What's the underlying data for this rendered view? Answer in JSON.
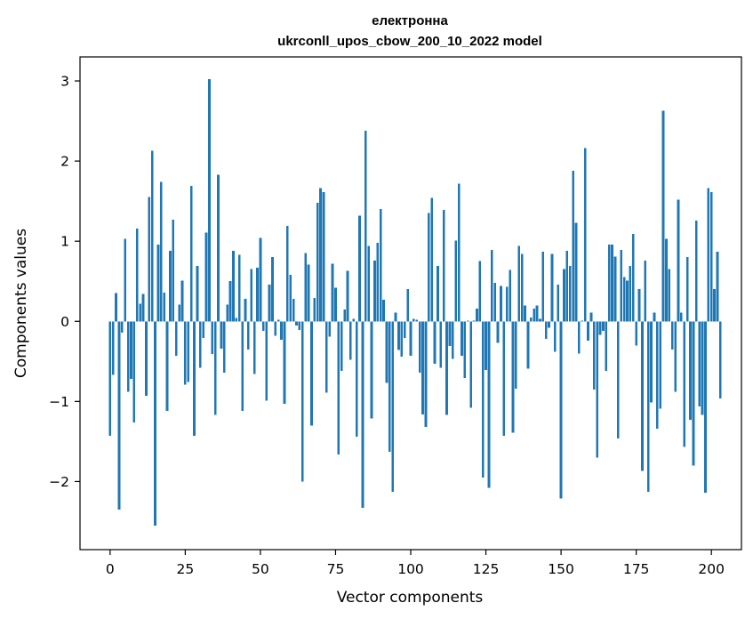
{
  "chart_data": {
    "type": "bar",
    "title_line1": "електронна",
    "title_line2": "ukrconll_upos_cbow_200_10_2022 model",
    "xlabel": "Vector components",
    "ylabel": "Components values",
    "xlim": [
      -10,
      210
    ],
    "ylim": [
      -2.85,
      3.3
    ],
    "xticks": [
      0,
      25,
      50,
      75,
      100,
      125,
      150,
      175,
      200
    ],
    "xtick_labels": [
      "0",
      "25",
      "50",
      "75",
      "100",
      "125",
      "150",
      "175",
      "200"
    ],
    "yticks": [
      -2,
      -1,
      0,
      1,
      2,
      3
    ],
    "ytick_labels": [
      "−2",
      "−1",
      "0",
      "1",
      "2",
      "3"
    ],
    "grid": false,
    "bar_color": "#1f77b4",
    "values": [
      -1.43,
      -0.67,
      0.35,
      -2.35,
      -0.14,
      1.03,
      -0.88,
      -0.72,
      -1.26,
      1.16,
      0.22,
      0.34,
      -0.93,
      1.55,
      2.13,
      -2.55,
      0.96,
      1.74,
      0.36,
      -1.12,
      0.88,
      1.27,
      -0.43,
      0.21,
      0.51,
      -0.79,
      -0.76,
      1.69,
      -1.43,
      0.69,
      -0.58,
      -0.21,
      1.11,
      3.02,
      -0.41,
      -1.17,
      1.83,
      -0.34,
      -0.64,
      0.21,
      0.5,
      0.88,
      0.04,
      0.83,
      -1.12,
      0.28,
      -0.35,
      0.65,
      -0.66,
      0.67,
      1.04,
      -0.12,
      -0.99,
      0.46,
      0.8,
      -0.18,
      0.02,
      -0.23,
      -1.03,
      1.19,
      0.58,
      0.28,
      -0.05,
      -0.11,
      -2.0,
      0.85,
      0.71,
      -1.3,
      0.29,
      1.48,
      1.66,
      1.61,
      -0.89,
      -0.19,
      0.72,
      0.42,
      -1.66,
      -0.62,
      0.15,
      0.63,
      -0.48,
      0.03,
      -1.44,
      1.32,
      -2.33,
      2.38,
      0.94,
      -1.21,
      0.76,
      0.98,
      1.4,
      0.27,
      -0.77,
      -1.63,
      -2.13,
      0.11,
      -0.36,
      -0.44,
      -0.21,
      0.4,
      -0.43,
      0.03,
      0.02,
      -0.64,
      -1.16,
      -1.32,
      1.35,
      1.54,
      -0.53,
      0.69,
      -0.58,
      1.39,
      -1.17,
      -0.31,
      -0.47,
      1.01,
      1.72,
      -0.43,
      -0.71,
      0.01,
      -1.08,
      0.01,
      0.16,
      0.75,
      -1.95,
      -0.61,
      -2.08,
      0.89,
      0.48,
      -0.27,
      0.44,
      -1.43,
      0.43,
      0.64,
      -1.39,
      -0.84,
      0.94,
      0.84,
      0.2,
      -0.59,
      0.05,
      0.16,
      0.2,
      0.03,
      0.87,
      -0.22,
      -0.08,
      0.84,
      -0.38,
      0.46,
      -2.21,
      0.65,
      0.88,
      0.69,
      1.88,
      1.23,
      -0.4,
      0.01,
      2.16,
      -0.24,
      0.11,
      -0.85,
      -1.7,
      -0.17,
      -0.12,
      -0.62,
      0.96,
      0.96,
      0.81,
      -1.46,
      0.89,
      0.55,
      0.51,
      0.69,
      1.09,
      -0.3,
      0.4,
      -1.87,
      0.76,
      -2.13,
      -1.01,
      0.11,
      -1.34,
      -1.09,
      2.63,
      1.03,
      0.65,
      -0.35,
      -0.88,
      1.52,
      0.11,
      -1.57,
      0.8,
      -1.23,
      -1.8,
      1.26,
      -1.06,
      -1.17,
      -2.14,
      1.66,
      1.61,
      0.4,
      0.87,
      -0.96
    ]
  }
}
